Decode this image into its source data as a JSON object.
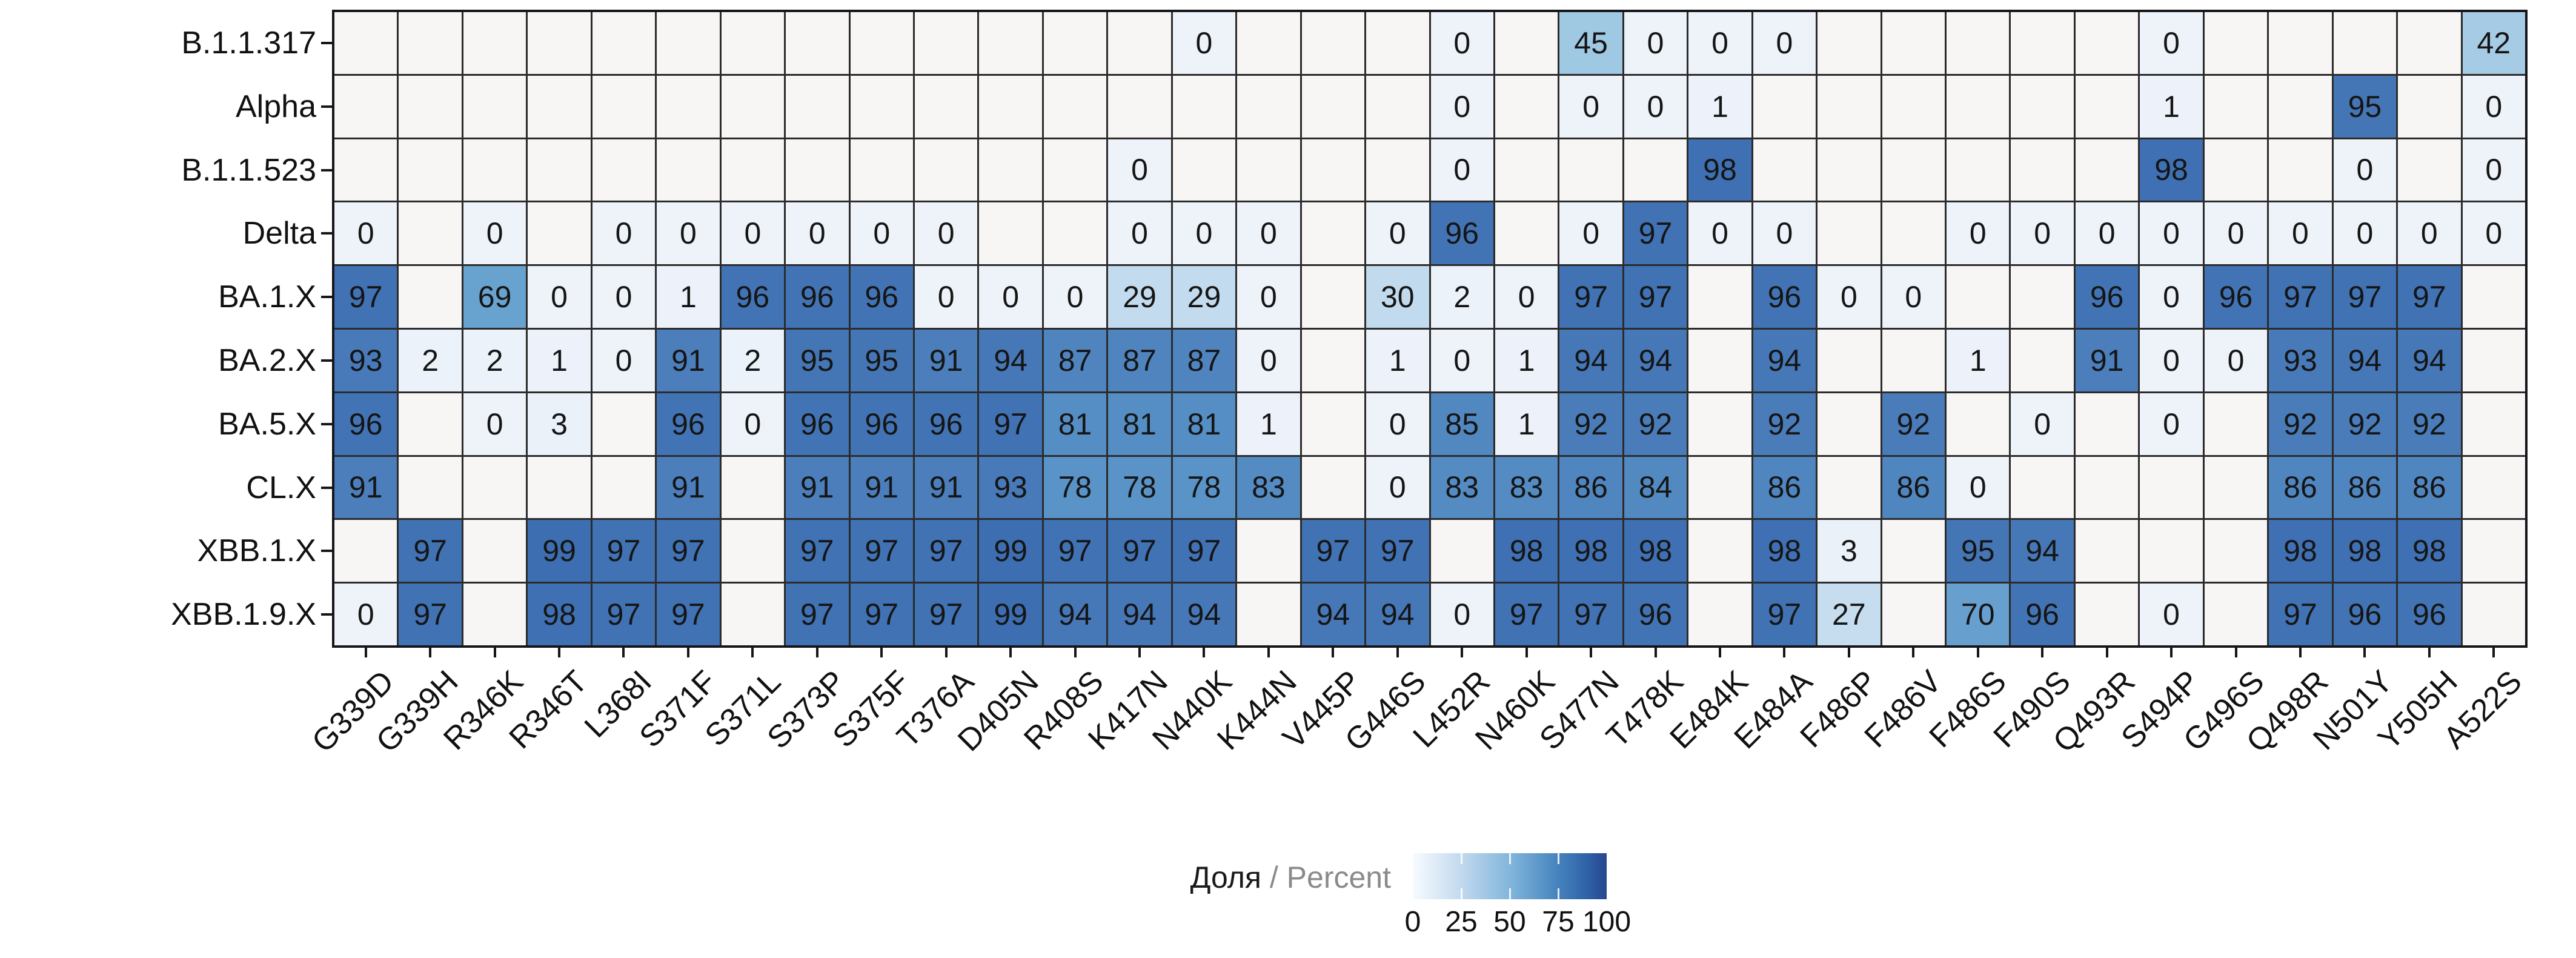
{
  "chart_data": {
    "type": "heatmap",
    "title": "",
    "xlabel": "",
    "ylabel": "",
    "x_categories": [
      "G339D",
      "G339H",
      "R346K",
      "R346T",
      "L368I",
      "S371F",
      "S371L",
      "S373P",
      "S375F",
      "T376A",
      "D405N",
      "R408S",
      "K417N",
      "N440K",
      "K444N",
      "V445P",
      "G446S",
      "L452R",
      "N460K",
      "S477N",
      "T478K",
      "E484K",
      "E484A",
      "F486P",
      "F486V",
      "F486S",
      "F490S",
      "Q493R",
      "S494P",
      "G496S",
      "Q498R",
      "N501Y",
      "Y505H",
      "A522S"
    ],
    "rows": [
      {
        "name": "B.1.1.317",
        "values": [
          null,
          null,
          null,
          null,
          null,
          null,
          null,
          null,
          null,
          null,
          null,
          null,
          null,
          0,
          null,
          null,
          null,
          0,
          null,
          45,
          0,
          0,
          0,
          null,
          null,
          null,
          null,
          null,
          0,
          null,
          null,
          null,
          null,
          42
        ]
      },
      {
        "name": "Alpha",
        "values": [
          null,
          null,
          null,
          null,
          null,
          null,
          null,
          null,
          null,
          null,
          null,
          null,
          null,
          null,
          null,
          null,
          null,
          0,
          null,
          0,
          0,
          1,
          null,
          null,
          null,
          null,
          null,
          null,
          1,
          null,
          null,
          95,
          null,
          0
        ]
      },
      {
        "name": "B.1.1.523",
        "values": [
          null,
          null,
          null,
          null,
          null,
          null,
          null,
          null,
          null,
          null,
          null,
          null,
          0,
          null,
          null,
          null,
          null,
          0,
          null,
          null,
          null,
          98,
          null,
          null,
          null,
          null,
          null,
          null,
          98,
          null,
          null,
          0,
          null,
          0
        ]
      },
      {
        "name": "Delta",
        "values": [
          0,
          null,
          0,
          null,
          0,
          0,
          0,
          0,
          0,
          0,
          null,
          null,
          0,
          0,
          0,
          null,
          0,
          96,
          null,
          0,
          97,
          0,
          0,
          null,
          null,
          0,
          0,
          0,
          0,
          0,
          0,
          0,
          0,
          0
        ]
      },
      {
        "name": "BA.1.X",
        "values": [
          97,
          null,
          69,
          0,
          0,
          1,
          96,
          96,
          96,
          0,
          0,
          0,
          29,
          29,
          0,
          null,
          30,
          2,
          0,
          97,
          97,
          null,
          96,
          0,
          0,
          null,
          null,
          96,
          0,
          96,
          97,
          97,
          97,
          null
        ]
      },
      {
        "name": "BA.2.X",
        "values": [
          93,
          2,
          2,
          1,
          0,
          91,
          2,
          95,
          95,
          91,
          94,
          87,
          87,
          87,
          0,
          null,
          1,
          0,
          1,
          94,
          94,
          null,
          94,
          null,
          null,
          1,
          null,
          91,
          0,
          0,
          93,
          94,
          94,
          null
        ]
      },
      {
        "name": "BA.5.X",
        "values": [
          96,
          null,
          0,
          3,
          null,
          96,
          0,
          96,
          96,
          96,
          97,
          81,
          81,
          81,
          1,
          null,
          0,
          85,
          1,
          92,
          92,
          null,
          92,
          null,
          92,
          null,
          0,
          null,
          0,
          null,
          92,
          92,
          92,
          null
        ]
      },
      {
        "name": "CL.X",
        "values": [
          91,
          null,
          null,
          null,
          null,
          91,
          null,
          91,
          91,
          91,
          93,
          78,
          78,
          78,
          83,
          null,
          0,
          83,
          83,
          86,
          84,
          null,
          86,
          null,
          86,
          0,
          null,
          null,
          null,
          null,
          86,
          86,
          86,
          null
        ]
      },
      {
        "name": "XBB.1.X",
        "values": [
          null,
          97,
          null,
          99,
          97,
          97,
          null,
          97,
          97,
          97,
          99,
          97,
          97,
          97,
          null,
          97,
          97,
          null,
          98,
          98,
          98,
          null,
          98,
          3,
          null,
          95,
          94,
          null,
          null,
          null,
          98,
          98,
          98,
          null
        ]
      },
      {
        "name": "XBB.1.9.X",
        "values": [
          0,
          97,
          null,
          98,
          97,
          97,
          null,
          97,
          97,
          97,
          99,
          94,
          94,
          94,
          null,
          94,
          94,
          0,
          97,
          97,
          96,
          null,
          97,
          27,
          null,
          70,
          96,
          null,
          0,
          null,
          97,
          96,
          96,
          null
        ]
      }
    ],
    "value_unit": "percent",
    "value_range": [
      0,
      100
    ],
    "grid_on": true,
    "legend_position": "bottom",
    "missing_color": "#f7f6f4",
    "color_ramp": [
      [
        0,
        "#eef3fa"
      ],
      [
        20,
        "#d4e4f4"
      ],
      [
        35,
        "#b7d5ea"
      ],
      [
        50,
        "#93c1e0"
      ],
      [
        65,
        "#6fa8d3"
      ],
      [
        80,
        "#5690c5"
      ],
      [
        92,
        "#4a7cba"
      ],
      [
        100,
        "#3a6cb0"
      ]
    ],
    "colorbar_gradient": [
      [
        0,
        "#f7fbff"
      ],
      [
        25,
        "#c2d9ee"
      ],
      [
        50,
        "#82b6dc"
      ],
      [
        75,
        "#4583bd"
      ],
      [
        90,
        "#2f62a7"
      ],
      [
        100,
        "#28468e"
      ]
    ],
    "legend": {
      "title_primary": "Доля",
      "title_separator": "/",
      "title_secondary": "Percent",
      "ticks": [
        "0",
        "25",
        "50",
        "75",
        "100"
      ]
    }
  }
}
